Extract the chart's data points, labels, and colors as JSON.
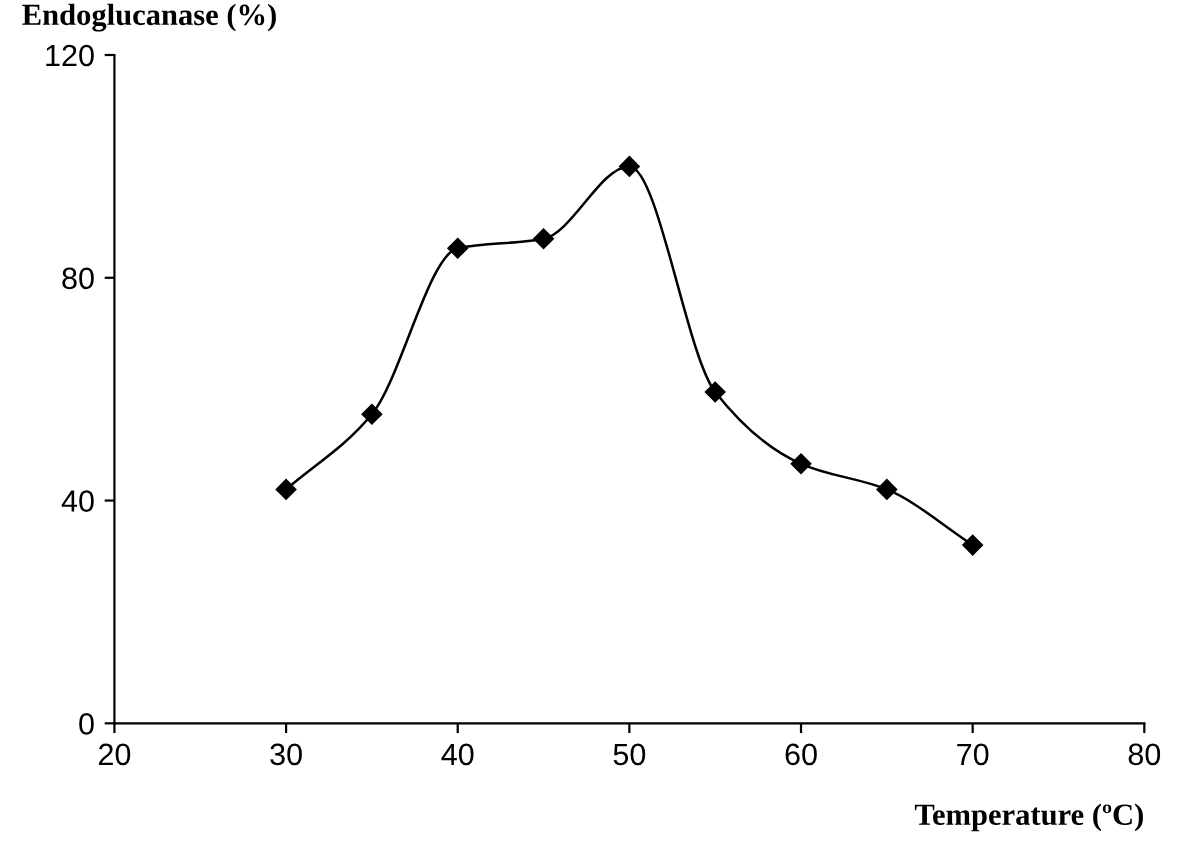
{
  "chart_data": {
    "type": "line",
    "ylabel": "Endoglucanase (%)",
    "xlabel": "Temperature (ºC)",
    "x": [
      30,
      35,
      40,
      45,
      50,
      55,
      60,
      65,
      70
    ],
    "series": [
      {
        "color": "#000000",
        "values": [
          42,
          55.5,
          85.3,
          87,
          100,
          59.5,
          46.6,
          42,
          32
        ]
      }
    ],
    "xlim": [
      20,
      80
    ],
    "xticks": [
      20,
      30,
      40,
      50,
      60,
      70,
      80
    ],
    "ylim": [
      0,
      120
    ],
    "yticks": [
      0,
      40,
      80,
      120
    ],
    "marker": "diamond",
    "line_style": "solid",
    "grid": false,
    "legend": false
  }
}
